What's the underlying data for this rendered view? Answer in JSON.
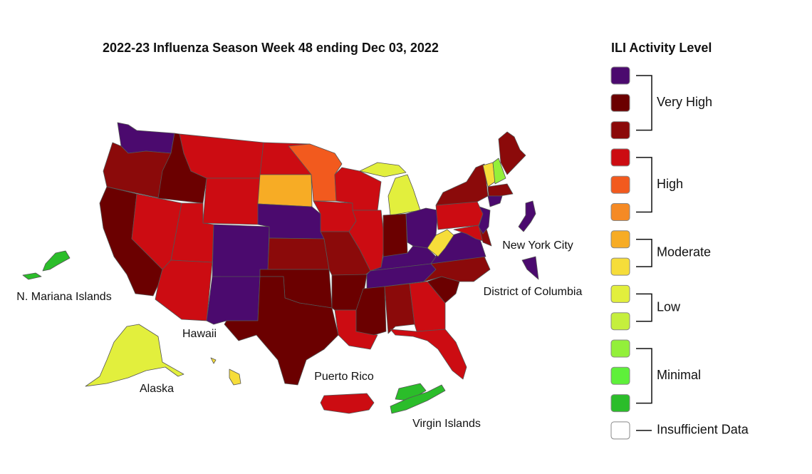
{
  "title": "2022-23 Influenza Season Week 48 ending Dec 03, 2022",
  "legend": {
    "title": "ILI Activity Level",
    "groups": [
      {
        "label": "Very High",
        "colors": [
          "#4b0a6e",
          "#6b0000",
          "#8b0a0a"
        ]
      },
      {
        "label": "High",
        "colors": [
          "#cc0c12",
          "#f25a1e",
          "#f58a25"
        ]
      },
      {
        "label": "Moderate",
        "colors": [
          "#f7ac25",
          "#f6dd3a"
        ]
      },
      {
        "label": "Low",
        "colors": [
          "#e2ef3d",
          "#c5ef3d"
        ]
      },
      {
        "label": "Minimal",
        "colors": [
          "#93f03a",
          "#5ef03a",
          "#2bbd2a"
        ]
      },
      {
        "label": "Insufficient Data",
        "colors": [
          "#ffffff"
        ]
      }
    ]
  },
  "map_labels": [
    "N. Mariana Islands",
    "Hawaii",
    "Alaska",
    "Puerto Rico",
    "Virgin Islands",
    "New York City",
    "District of Columbia"
  ]
}
